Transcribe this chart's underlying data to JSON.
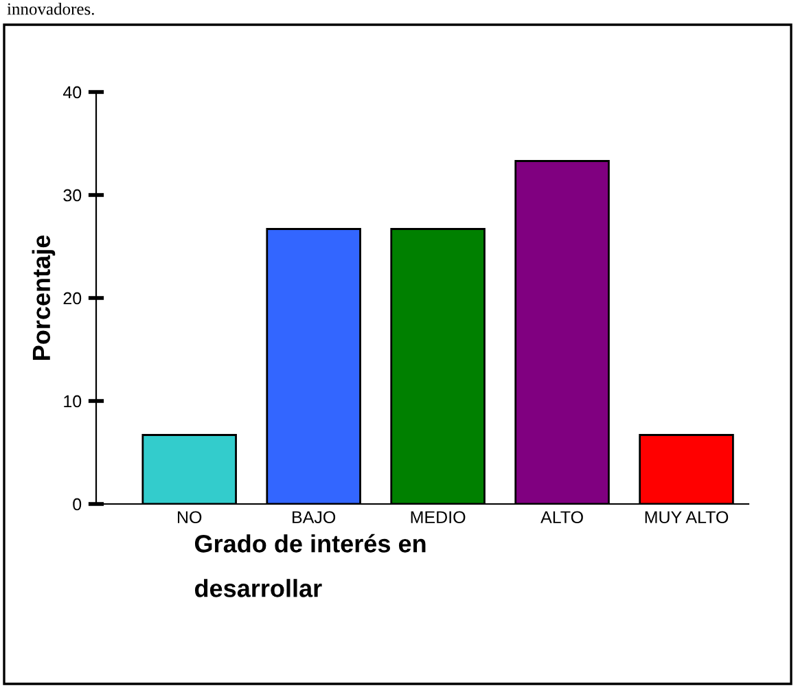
{
  "chart_data": {
    "type": "bar",
    "xlabel": "Grado de interés en\ndesarrollar",
    "ylabel": "Porcentaje",
    "categories": [
      "NO",
      "BAJO",
      "MEDIO",
      "ALTO",
      "MUY ALTO"
    ],
    "values": [
      6.7,
      26.7,
      26.7,
      33.3,
      6.7
    ],
    "colors": [
      "#33cccc",
      "#3366ff",
      "#008000",
      "#800080",
      "#ff0000"
    ],
    "ylim": [
      0,
      40
    ],
    "yticks": [
      0,
      10,
      20,
      30,
      40
    ],
    "grid": false,
    "annotations": [
      "innovadores."
    ]
  }
}
